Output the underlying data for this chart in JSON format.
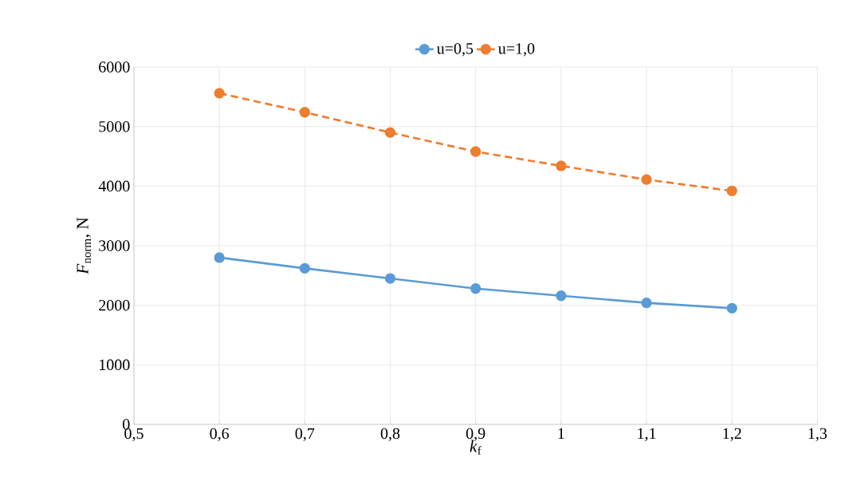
{
  "chart_data": {
    "type": "line",
    "xlabel": "*k*$_{f}$",
    "ylabel": "*F*$_{norm}$, N",
    "x": [
      0.6,
      0.7,
      0.8,
      0.9,
      1.0,
      1.1,
      1.2
    ],
    "series": [
      {
        "name": "u=0,5",
        "color": "#5b9bd5",
        "line_style": "solid",
        "values": [
          2800,
          2620,
          2450,
          2280,
          2160,
          2040,
          1950
        ]
      },
      {
        "name": "u=1,0",
        "color": "#ed7d31",
        "line_style": "dashed",
        "values": [
          5560,
          5240,
          4900,
          4580,
          4340,
          4110,
          3920
        ]
      }
    ],
    "xlim": [
      0.5,
      1.3
    ],
    "xticks": [
      {
        "value": 0.5,
        "label": "0,5"
      },
      {
        "value": 0.6,
        "label": "0,6"
      },
      {
        "value": 0.7,
        "label": "0,7"
      },
      {
        "value": 0.8,
        "label": "0,8"
      },
      {
        "value": 0.9,
        "label": "0,9"
      },
      1,
      {
        "value": 1.1,
        "label": "1,1"
      },
      {
        "value": 1.2,
        "label": "1,2"
      },
      {
        "value": 1.3,
        "label": "1,3"
      }
    ],
    "ylim": [
      0,
      6000
    ],
    "yticks": [
      0,
      1000,
      2000,
      3000,
      4000,
      5000,
      6000
    ],
    "grid": true,
    "legend": "top",
    "marker": "circle"
  }
}
